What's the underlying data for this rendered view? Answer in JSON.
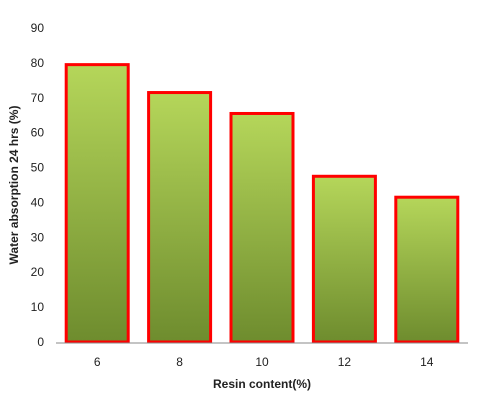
{
  "chart_data": {
    "type": "bar",
    "categories": [
      "6",
      "8",
      "10",
      "12",
      "14"
    ],
    "values": [
      79.5,
      71.5,
      65.5,
      47.5,
      41.5
    ],
    "xlabel": "Resin content(%)",
    "ylabel": "Water absorption 24 hrs (%)",
    "ylim": [
      0,
      90
    ],
    "yticks": [
      "0",
      "10",
      "20",
      "30",
      "40",
      "50",
      "60",
      "70",
      "80",
      "90"
    ],
    "grid": false,
    "legend": "none",
    "colors": {
      "bar_top": "#b5d65a",
      "bar_bottom": "#6e8c2e",
      "bar_outline": "#ff0000",
      "axis": "#888888",
      "text": "#222222"
    }
  }
}
